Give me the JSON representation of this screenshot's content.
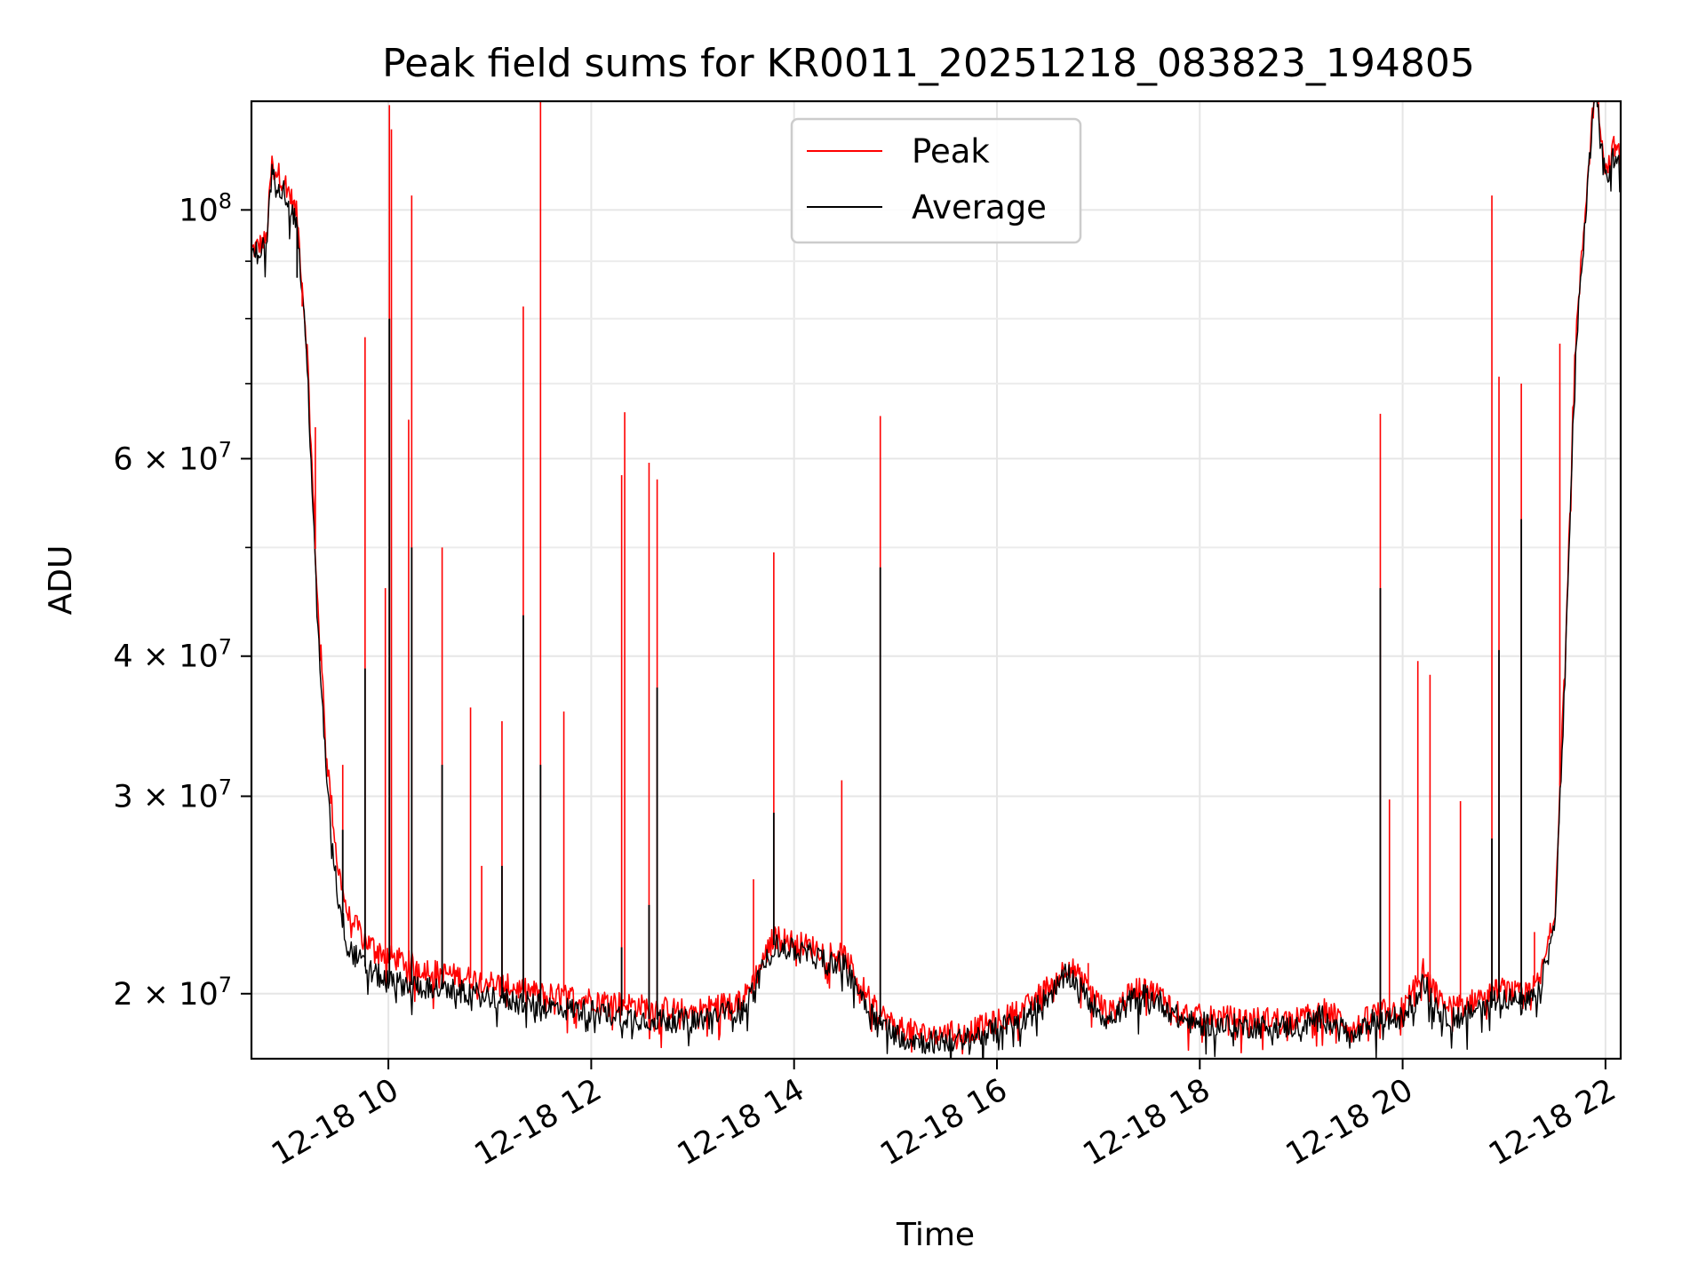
{
  "chart_data": {
    "type": "line",
    "title": "Peak field sums for KR0011_20251218_083823_194805",
    "xlabel": "Time",
    "ylabel": "ADU",
    "yscale": "log",
    "xlim": [
      8.65,
      22.15
    ],
    "ylim": [
      17500000,
      125000000
    ],
    "x_ticks": [
      {
        "value": 10,
        "label": "12-18 10"
      },
      {
        "value": 12,
        "label": "12-18 12"
      },
      {
        "value": 14,
        "label": "12-18 14"
      },
      {
        "value": 16,
        "label": "12-18 16"
      },
      {
        "value": 18,
        "label": "12-18 18"
      },
      {
        "value": 20,
        "label": "12-18 20"
      },
      {
        "value": 22,
        "label": "12-18 22"
      }
    ],
    "y_ticks": [
      {
        "value": 20000000,
        "label_base": "2 × 10",
        "label_exp": "7"
      },
      {
        "value": 30000000,
        "label_base": "3 × 10",
        "label_exp": "7"
      },
      {
        "value": 40000000,
        "label_base": "4 × 10",
        "label_exp": "7"
      },
      {
        "value": 60000000,
        "label_base": "6 × 10",
        "label_exp": "7"
      },
      {
        "value": 100000000,
        "label_base": "10",
        "label_exp": "8"
      }
    ],
    "y_minor_ticks": [
      50000000,
      70000000,
      80000000,
      90000000
    ],
    "grid": true,
    "legend_position": "top-center",
    "x_units": "hour of day on 2025-12-18",
    "series": [
      {
        "name": "Peak",
        "color": "#ff0000",
        "x": [
          8.65,
          8.8,
          8.85,
          9.0,
          9.1,
          9.2,
          9.3,
          9.4,
          9.5,
          9.6,
          9.8,
          10.0,
          10.5,
          11.0,
          11.5,
          12.0,
          12.5,
          13.0,
          13.5,
          13.65,
          13.8,
          14.2,
          14.5,
          14.8,
          15.0,
          15.3,
          15.7,
          16.0,
          16.3,
          16.6,
          16.7,
          16.9,
          17.1,
          17.4,
          17.6,
          17.8,
          18.0,
          18.5,
          19.0,
          19.2,
          19.4,
          19.5,
          19.7,
          19.8,
          20.0,
          20.2,
          20.4,
          20.6,
          20.8,
          21.0,
          21.2,
          21.35,
          21.5,
          21.6,
          21.7,
          21.8,
          21.9,
          22.0,
          22.1,
          22.15
        ],
        "y": [
          92000000,
          94000000,
          110000000,
          105000000,
          99000000,
          75000000,
          45000000,
          32000000,
          26000000,
          23500000,
          22200000,
          21600000,
          20900000,
          20500000,
          20000000,
          19800000,
          19500000,
          19300000,
          19800000,
          21000000,
          22500000,
          22000000,
          21600000,
          19400000,
          18700000,
          18400000,
          18500000,
          18900000,
          19500000,
          20700000,
          21300000,
          20200000,
          19200000,
          20300000,
          20000000,
          19300000,
          19100000,
          19000000,
          19000000,
          19400000,
          19000000,
          18500000,
          19200000,
          19300000,
          19400000,
          21000000,
          19500000,
          19500000,
          20000000,
          20200000,
          19900000,
          20500000,
          23500000,
          40000000,
          75000000,
          100000000,
          132000000,
          108000000,
          115000000,
          110000000
        ],
        "spikes": [
          {
            "x": 9.15,
            "y": 82000000
          },
          {
            "x": 9.28,
            "y": 64000000
          },
          {
            "x": 9.55,
            "y": 32000000
          },
          {
            "x": 9.77,
            "y": 77000000
          },
          {
            "x": 9.97,
            "y": 46000000
          },
          {
            "x": 10.01,
            "y": 124000000
          },
          {
            "x": 10.03,
            "y": 118000000
          },
          {
            "x": 10.2,
            "y": 65000000
          },
          {
            "x": 10.23,
            "y": 103000000
          },
          {
            "x": 10.53,
            "y": 50000000
          },
          {
            "x": 10.81,
            "y": 36000000
          },
          {
            "x": 10.92,
            "y": 26000000
          },
          {
            "x": 11.12,
            "y": 35000000
          },
          {
            "x": 11.33,
            "y": 82000000
          },
          {
            "x": 11.5,
            "y": 128000000
          },
          {
            "x": 11.73,
            "y": 35700000
          },
          {
            "x": 12.3,
            "y": 58000000
          },
          {
            "x": 12.33,
            "y": 66000000
          },
          {
            "x": 12.57,
            "y": 59500000
          },
          {
            "x": 12.65,
            "y": 57500000
          },
          {
            "x": 13.6,
            "y": 25300000
          },
          {
            "x": 13.8,
            "y": 49500000
          },
          {
            "x": 14.47,
            "y": 31000000
          },
          {
            "x": 14.85,
            "y": 65500000
          },
          {
            "x": 16.9,
            "y": 21300000
          },
          {
            "x": 19.78,
            "y": 65800000
          },
          {
            "x": 19.87,
            "y": 29800000
          },
          {
            "x": 20.15,
            "y": 39600000
          },
          {
            "x": 20.27,
            "y": 38500000
          },
          {
            "x": 20.57,
            "y": 29700000
          },
          {
            "x": 20.88,
            "y": 103000000
          },
          {
            "x": 20.95,
            "y": 71000000
          },
          {
            "x": 21.17,
            "y": 70000000
          },
          {
            "x": 21.3,
            "y": 22700000
          },
          {
            "x": 21.55,
            "y": 76000000
          }
        ]
      },
      {
        "name": "Average",
        "color": "#000000",
        "x": [
          8.65,
          8.8,
          8.85,
          9.0,
          9.1,
          9.2,
          9.3,
          9.4,
          9.5,
          9.6,
          9.8,
          10.0,
          10.5,
          11.0,
          11.5,
          12.0,
          12.5,
          13.0,
          13.5,
          13.65,
          13.8,
          14.2,
          14.5,
          14.8,
          15.0,
          15.3,
          15.7,
          16.0,
          16.3,
          16.6,
          16.7,
          16.9,
          17.1,
          17.4,
          17.6,
          17.8,
          18.0,
          18.5,
          19.0,
          19.2,
          19.4,
          19.5,
          19.7,
          19.8,
          20.0,
          20.2,
          20.4,
          20.6,
          20.8,
          21.0,
          21.2,
          21.35,
          21.5,
          21.6,
          21.7,
          21.8,
          21.9,
          22.0,
          22.1,
          22.15
        ],
        "y": [
          91000000,
          93000000,
          108000000,
          103000000,
          97000000,
          73000000,
          43000000,
          30000000,
          24500000,
          22000000,
          21000000,
          20500000,
          20200000,
          19900000,
          19500000,
          19300000,
          19000000,
          18900000,
          19400000,
          20600000,
          22100000,
          21600000,
          21200000,
          19000000,
          18400000,
          18100000,
          18200000,
          18600000,
          19100000,
          20300000,
          20900000,
          19800000,
          18900000,
          20000000,
          19700000,
          19000000,
          18800000,
          18700000,
          18700000,
          19100000,
          18700000,
          18200000,
          18900000,
          19000000,
          19000000,
          20500000,
          19100000,
          19100000,
          19600000,
          19900000,
          19500000,
          20100000,
          23000000,
          38000000,
          73000000,
          98000000,
          130000000,
          106000000,
          113000000,
          108000000
        ],
        "spikes": [
          {
            "x": 9.1,
            "y": 87000000
          },
          {
            "x": 9.55,
            "y": 28000000
          },
          {
            "x": 9.77,
            "y": 39000000
          },
          {
            "x": 10.01,
            "y": 80000000
          },
          {
            "x": 10.23,
            "y": 50000000
          },
          {
            "x": 10.53,
            "y": 32000000
          },
          {
            "x": 11.12,
            "y": 26000000
          },
          {
            "x": 11.33,
            "y": 43500000
          },
          {
            "x": 11.5,
            "y": 32000000
          },
          {
            "x": 12.3,
            "y": 22000000
          },
          {
            "x": 12.57,
            "y": 24000000
          },
          {
            "x": 12.65,
            "y": 37500000
          },
          {
            "x": 13.8,
            "y": 29000000
          },
          {
            "x": 14.85,
            "y": 48000000
          },
          {
            "x": 19.78,
            "y": 46000000
          },
          {
            "x": 20.88,
            "y": 27500000
          },
          {
            "x": 20.95,
            "y": 40500000
          },
          {
            "x": 21.17,
            "y": 53000000
          }
        ]
      }
    ]
  }
}
